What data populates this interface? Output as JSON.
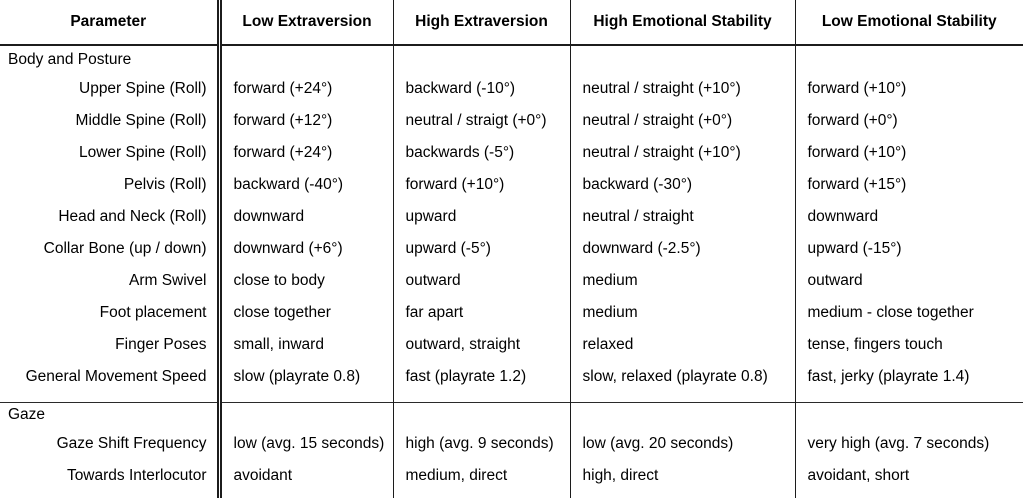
{
  "table": {
    "columns": [
      "Parameter",
      "Low Extraversion",
      "High Extraversion",
      "High Emotional Stability",
      "Low Emotional Stability"
    ],
    "sections": [
      {
        "title": "Body and Posture",
        "rows": [
          {
            "param": "Upper Spine (Roll)",
            "values": [
              "forward (+24°)",
              "backward (-10°)",
              "neutral / straight (+10°)",
              "forward (+10°)"
            ]
          },
          {
            "param": "Middle Spine (Roll)",
            "values": [
              "forward (+12°)",
              "neutral / straigt (+0°)",
              "neutral / straight (+0°)",
              "forward (+0°)"
            ]
          },
          {
            "param": "Lower Spine (Roll)",
            "values": [
              "forward (+24°)",
              "backwards (-5°)",
              "neutral / straight (+10°)",
              "forward (+10°)"
            ]
          },
          {
            "param": "Pelvis (Roll)",
            "values": [
              "backward (-40°)",
              "forward (+10°)",
              "backward (-30°)",
              "forward (+15°)"
            ]
          },
          {
            "param": "Head and Neck (Roll)",
            "values": [
              "downward",
              "upward",
              "neutral / straight",
              "downward"
            ]
          },
          {
            "param": "Collar Bone (up / down)",
            "values": [
              "downward (+6°)",
              "upward (-5°)",
              "downward (-2.5°)",
              "upward (-15°)"
            ]
          },
          {
            "param": "Arm Swivel",
            "values": [
              "close to body",
              "outward",
              "medium",
              "outward"
            ]
          },
          {
            "param": "Foot placement",
            "values": [
              "close together",
              "far apart",
              "medium",
              "medium - close together"
            ]
          },
          {
            "param": "Finger Poses",
            "values": [
              "small, inward",
              "outward, straight",
              "relaxed",
              "tense, fingers touch"
            ]
          },
          {
            "param": "General Movement Speed",
            "values": [
              "slow (playrate 0.8)",
              "fast (playrate 1.2)",
              "slow, relaxed (playrate 0.8)",
              "fast, jerky (playrate 1.4)"
            ]
          }
        ]
      },
      {
        "title": "Gaze",
        "rows": [
          {
            "param": "Gaze Shift Frequency",
            "values": [
              "low (avg. 15 seconds)",
              "high (avg. 9 seconds)",
              "low (avg. 20 seconds)",
              "very high (avg. 7 seconds)"
            ]
          },
          {
            "param": "Towards Interlocutor",
            "values": [
              "avoidant",
              "medium, direct",
              "high, direct",
              "avoidant, short"
            ]
          }
        ]
      }
    ]
  }
}
